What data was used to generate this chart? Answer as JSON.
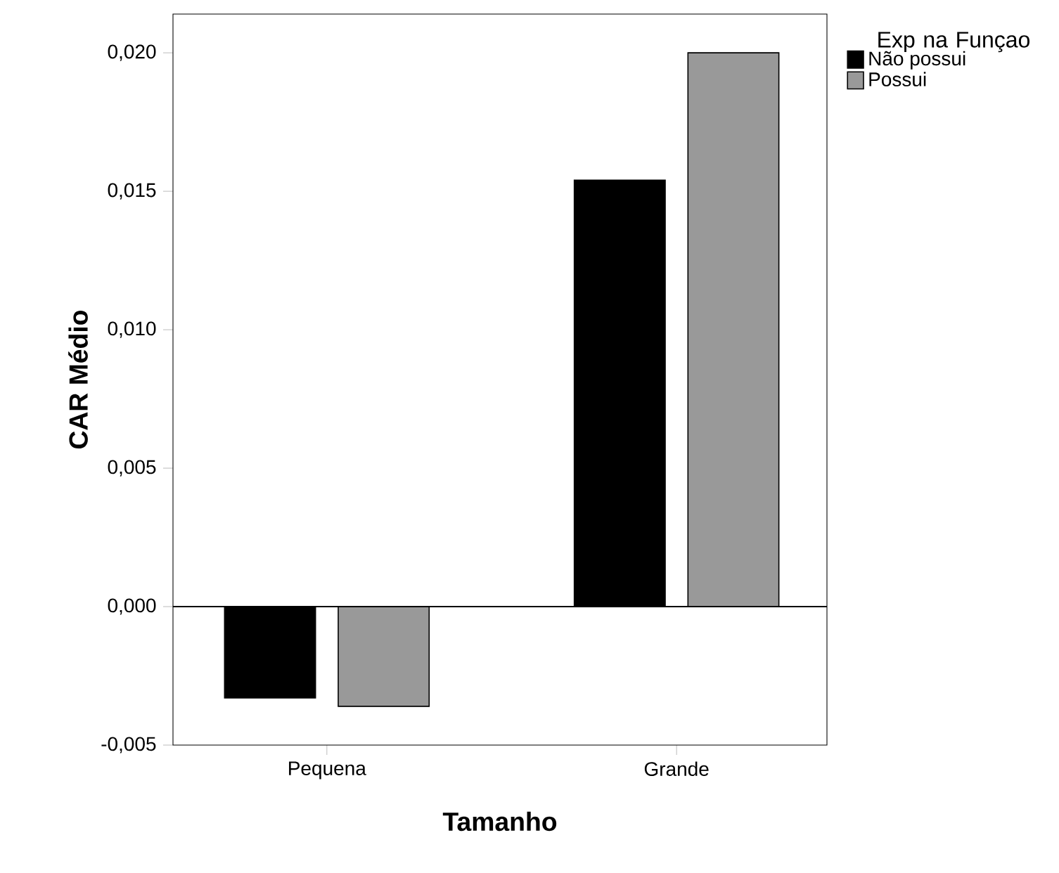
{
  "chart_data": {
    "type": "bar",
    "xlabel": "Tamanho",
    "ylabel": "CAR Médio",
    "legend_title": "Exp na Funçao",
    "categories": [
      "Pequena",
      "Grande"
    ],
    "series": [
      {
        "name": "Não possui",
        "color": "#000000",
        "values": [
          -0.0033,
          0.0154
        ]
      },
      {
        "name": "Possui",
        "color": "#999999",
        "values": [
          -0.0036,
          0.02
        ]
      }
    ],
    "ylim": [
      -0.005,
      0.0214
    ],
    "yticks": [
      {
        "value": -0.005,
        "label": "-0,005"
      },
      {
        "value": 0.0,
        "label": "0,000"
      },
      {
        "value": 0.005,
        "label": "0,005"
      },
      {
        "value": 0.01,
        "label": "0,010"
      },
      {
        "value": 0.015,
        "label": "0,015"
      },
      {
        "value": 0.02,
        "label": "0,020"
      }
    ],
    "ref_lines": [
      {
        "axis": "y",
        "value": 0
      }
    ],
    "grid": false,
    "legend": "top right"
  }
}
